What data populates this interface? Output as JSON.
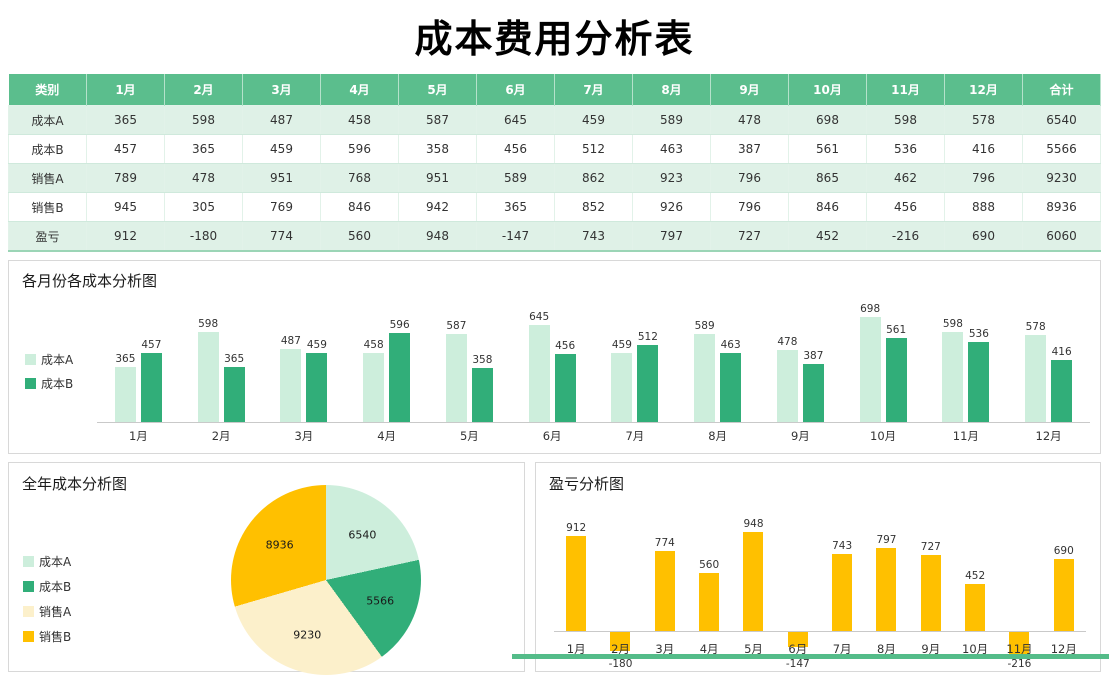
{
  "title": "成本费用分析表",
  "table": {
    "headers": [
      "类别",
      "1月",
      "2月",
      "3月",
      "4月",
      "5月",
      "6月",
      "7月",
      "8月",
      "9月",
      "10月",
      "11月",
      "12月",
      "合计"
    ],
    "rows": [
      {
        "label": "成本A",
        "values": [
          365,
          598,
          487,
          458,
          587,
          645,
          459,
          589,
          478,
          698,
          598,
          578,
          6540
        ]
      },
      {
        "label": "成本B",
        "values": [
          457,
          365,
          459,
          596,
          358,
          456,
          512,
          463,
          387,
          561,
          536,
          416,
          5566
        ]
      },
      {
        "label": "销售A",
        "values": [
          789,
          478,
          951,
          768,
          951,
          589,
          862,
          923,
          796,
          865,
          462,
          796,
          9230
        ]
      },
      {
        "label": "销售B",
        "values": [
          945,
          305,
          769,
          846,
          942,
          365,
          852,
          926,
          796,
          846,
          456,
          888,
          8936
        ]
      },
      {
        "label": "盈亏",
        "values": [
          912,
          -180,
          774,
          560,
          948,
          -147,
          743,
          797,
          727,
          452,
          -216,
          690,
          6060
        ]
      }
    ]
  },
  "colors": {
    "header_green": "#5BBE8D",
    "row_tint": "#DFF1E7",
    "mint": "#CDEEDC",
    "green": "#31AE79",
    "cream": "#FCF0CB",
    "gold": "#FFC000"
  },
  "chart_data": [
    {
      "type": "bar",
      "title": "各月份各成本分析图",
      "categories": [
        "1月",
        "2月",
        "3月",
        "4月",
        "5月",
        "6月",
        "7月",
        "8月",
        "9月",
        "10月",
        "11月",
        "12月"
      ],
      "series": [
        {
          "name": "成本A",
          "color": "#CDEEDC",
          "values": [
            365,
            598,
            487,
            458,
            587,
            645,
            459,
            589,
            478,
            698,
            598,
            578
          ]
        },
        {
          "name": "成本B",
          "color": "#31AE79",
          "values": [
            457,
            365,
            459,
            596,
            358,
            456,
            512,
            463,
            387,
            561,
            536,
            416
          ]
        }
      ],
      "ylim": [
        0,
        750
      ],
      "legend_position": "left",
      "data_labels": true,
      "gridlines": false
    },
    {
      "type": "pie",
      "title": "全年成本分析图",
      "labels": [
        "成本A",
        "成本B",
        "销售A",
        "销售B"
      ],
      "values": [
        6540,
        5566,
        9230,
        8936
      ],
      "colors": [
        "#CDEEDC",
        "#31AE79",
        "#FCF0CB",
        "#FFC000"
      ],
      "legend_position": "left",
      "data_labels": true
    },
    {
      "type": "bar",
      "title": "盈亏分析图",
      "categories": [
        "1月",
        "2月",
        "3月",
        "4月",
        "5月",
        "6月",
        "7月",
        "8月",
        "9月",
        "10月",
        "11月",
        "12月"
      ],
      "series": [
        {
          "name": "盈亏",
          "color": "#FFC000",
          "values": [
            912,
            -180,
            774,
            560,
            948,
            -147,
            743,
            797,
            727,
            452,
            -216,
            690
          ]
        }
      ],
      "ylim": [
        -300,
        1000
      ],
      "legend_position": "none",
      "data_labels": true,
      "gridlines": false
    }
  ]
}
